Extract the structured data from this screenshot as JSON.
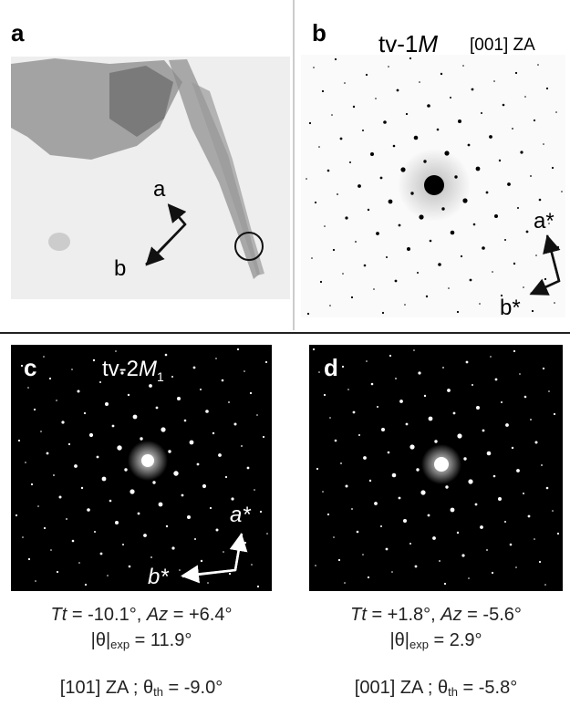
{
  "panels": [
    {
      "label": "a",
      "axis_labels": [
        "a",
        "b"
      ]
    },
    {
      "label": "b",
      "title": "tv-1",
      "title_italic": "M",
      "zone": "[001] ZA",
      "axis_labels": [
        "a*",
        "b*"
      ]
    },
    {
      "label": "c",
      "title": "tv-2",
      "title_italic": "M",
      "title_sub": "1",
      "axis_labels": [
        "a*",
        "b*"
      ],
      "caption": {
        "line1": [
          "Tt",
          " = -10.1°, ",
          "Az",
          " = +6.4°"
        ],
        "line2": [
          "|θ|",
          "exp",
          " = 11.9°"
        ],
        "line3": [
          "[101] ZA ; θ",
          "th",
          " = -9.0°"
        ]
      }
    },
    {
      "label": "d",
      "caption": {
        "line1": [
          "Tt",
          " = +1.8°, ",
          "Az",
          " = -5.6°"
        ],
        "line2": [
          "|θ|",
          "exp",
          " = 2.9°"
        ],
        "line3": [
          "[001] ZA ; θ",
          "th",
          " = -5.8°"
        ]
      }
    }
  ]
}
